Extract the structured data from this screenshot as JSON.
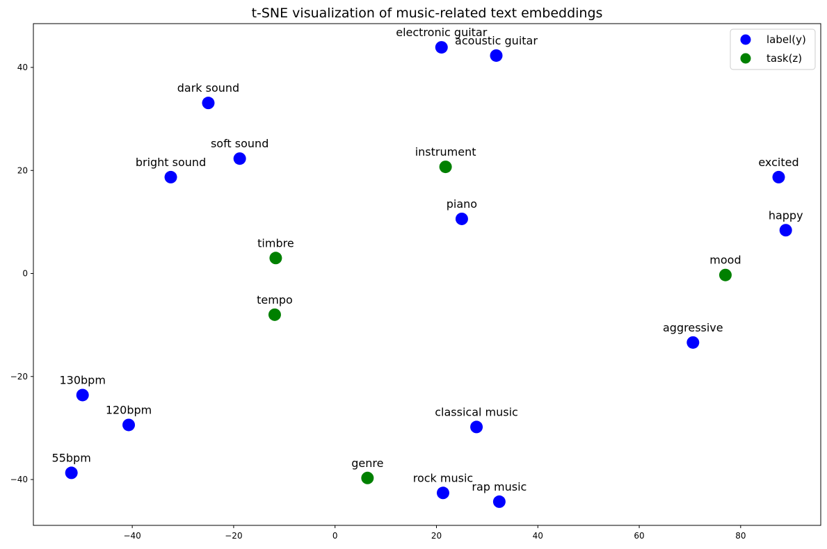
{
  "chart_data": {
    "type": "scatter",
    "title": "t-SNE visualization of music-related text embeddings",
    "xlabel": "",
    "ylabel": "",
    "xlim": [
      -59.5,
      95.8
    ],
    "ylim": [
      -48.9,
      48.5
    ],
    "xticks": [
      -40,
      -20,
      0,
      20,
      40,
      60,
      80
    ],
    "yticks": [
      -40,
      -20,
      0,
      20,
      40
    ],
    "xtick_labels": [
      "−40",
      "−20",
      "0",
      "20",
      "40",
      "60",
      "80"
    ],
    "ytick_labels": [
      "−40",
      "−20",
      "0",
      "20",
      "40"
    ],
    "grid": false,
    "legend_position": "top-right",
    "series": [
      {
        "name": "label(y)",
        "color": "#0000ff",
        "points": [
          {
            "label": "electronic guitar",
            "x": 21.0,
            "y": 43.9
          },
          {
            "label": "acoustic guitar",
            "x": 31.8,
            "y": 42.3
          },
          {
            "label": "dark sound",
            "x": -25.0,
            "y": 33.1
          },
          {
            "label": "soft sound",
            "x": -18.8,
            "y": 22.3
          },
          {
            "label": "bright sound",
            "x": -32.4,
            "y": 18.7
          },
          {
            "label": "excited",
            "x": 87.5,
            "y": 18.7
          },
          {
            "label": "piano",
            "x": 25.0,
            "y": 10.6
          },
          {
            "label": "happy",
            "x": 88.9,
            "y": 8.4
          },
          {
            "label": "aggressive",
            "x": 70.6,
            "y": -13.4
          },
          {
            "label": "130bpm",
            "x": -49.8,
            "y": -23.6
          },
          {
            "label": "120bpm",
            "x": -40.7,
            "y": -29.4
          },
          {
            "label": "classical music",
            "x": 27.9,
            "y": -29.8
          },
          {
            "label": "55bpm",
            "x": -52.0,
            "y": -38.7
          },
          {
            "label": "rock music",
            "x": 21.3,
            "y": -42.6
          },
          {
            "label": "rap music",
            "x": 32.4,
            "y": -44.3
          }
        ]
      },
      {
        "name": "task(z)",
        "color": "#008000",
        "points": [
          {
            "label": "instrument",
            "x": 21.8,
            "y": 20.7
          },
          {
            "label": "timbre",
            "x": -11.7,
            "y": 3.0
          },
          {
            "label": "mood",
            "x": 77.0,
            "y": -0.3
          },
          {
            "label": "tempo",
            "x": -11.9,
            "y": -8.0
          },
          {
            "label": "genre",
            "x": 6.4,
            "y": -39.7
          }
        ]
      }
    ]
  }
}
